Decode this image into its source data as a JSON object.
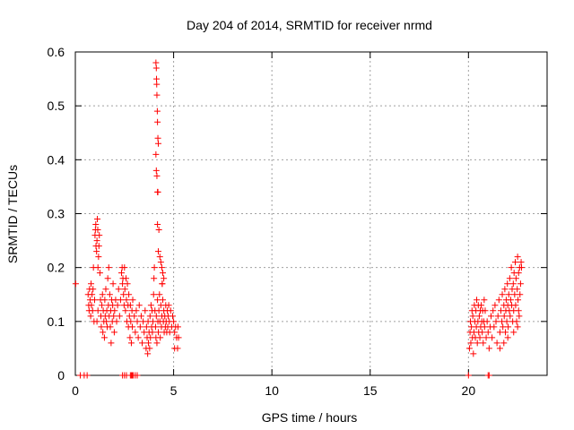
{
  "chart_data": {
    "type": "scatter",
    "title": "Day 204 of 2014, SRMTID for receiver nrmd",
    "xlabel": "GPS time / hours",
    "ylabel": "SRMTID / TECUs",
    "xlim": [
      0,
      24
    ],
    "ylim": [
      0,
      0.6
    ],
    "xticks": [
      0,
      5,
      10,
      15,
      20
    ],
    "xtick_labels": [
      "0",
      "5",
      "10",
      "15",
      "20"
    ],
    "yticks": [
      0,
      0.1,
      0.2,
      0.3,
      0.4,
      0.5,
      0.6
    ],
    "ytick_labels": [
      "0",
      "0.1",
      "0.2",
      "0.3",
      "0.4",
      "0.5",
      "0.6"
    ],
    "grid": true,
    "marker": "+",
    "color": "#ff0000",
    "series": [
      {
        "name": "SRMTID",
        "points": [
          [
            0.02,
            0.17
          ],
          [
            0.25,
            0.0
          ],
          [
            0.45,
            0.0
          ],
          [
            0.6,
            0.0
          ],
          [
            0.65,
            0.15
          ],
          [
            0.68,
            0.13
          ],
          [
            0.7,
            0.12
          ],
          [
            0.72,
            0.16
          ],
          [
            0.75,
            0.14
          ],
          [
            0.78,
            0.11
          ],
          [
            0.8,
            0.17
          ],
          [
            0.82,
            0.13
          ],
          [
            0.85,
            0.15
          ],
          [
            0.88,
            0.12
          ],
          [
            0.9,
            0.16
          ],
          [
            0.92,
            0.2
          ],
          [
            0.95,
            0.1
          ],
          [
            0.98,
            0.14
          ],
          [
            1.0,
            0.26
          ],
          [
            1.02,
            0.27
          ],
          [
            1.04,
            0.28
          ],
          [
            1.05,
            0.24
          ],
          [
            1.08,
            0.23
          ],
          [
            1.1,
            0.25
          ],
          [
            1.12,
            0.29
          ],
          [
            1.14,
            0.27
          ],
          [
            1.15,
            0.2
          ],
          [
            1.18,
            0.22
          ],
          [
            1.2,
            0.24
          ],
          [
            1.22,
            0.26
          ],
          [
            1.25,
            0.19
          ],
          [
            1.1,
            0.1
          ],
          [
            1.15,
            0.12
          ],
          [
            1.28,
            0.14
          ],
          [
            1.3,
            0.11
          ],
          [
            1.32,
            0.09
          ],
          [
            1.35,
            0.13
          ],
          [
            1.38,
            0.15
          ],
          [
            1.4,
            0.08
          ],
          [
            1.42,
            0.12
          ],
          [
            1.45,
            0.1
          ],
          [
            1.48,
            0.07
          ],
          [
            1.5,
            0.14
          ],
          [
            1.52,
            0.11
          ],
          [
            1.55,
            0.16
          ],
          [
            1.58,
            0.1
          ],
          [
            1.6,
            0.12
          ],
          [
            1.62,
            0.09
          ],
          [
            1.65,
            0.18
          ],
          [
            1.68,
            0.13
          ],
          [
            1.7,
            0.2
          ],
          [
            1.72,
            0.11
          ],
          [
            1.75,
            0.15
          ],
          [
            1.78,
            0.09
          ],
          [
            1.8,
            0.12
          ],
          [
            1.82,
            0.06
          ],
          [
            1.85,
            0.14
          ],
          [
            1.88,
            0.1
          ],
          [
            1.9,
            0.13
          ],
          [
            1.92,
            0.17
          ],
          [
            1.95,
            0.11
          ],
          [
            1.98,
            0.08
          ],
          [
            2.0,
            0.12
          ],
          [
            2.05,
            0.14
          ],
          [
            2.1,
            0.1
          ],
          [
            2.15,
            0.13
          ],
          [
            2.2,
            0.16
          ],
          [
            2.25,
            0.11
          ],
          [
            2.3,
            0.14
          ],
          [
            2.35,
            0.19
          ],
          [
            2.38,
            0.2
          ],
          [
            2.4,
            0.17
          ],
          [
            2.42,
            0.18
          ],
          [
            2.45,
            0.15
          ],
          [
            2.48,
            0.13
          ],
          [
            2.5,
            0.2
          ],
          [
            2.52,
            0.16
          ],
          [
            2.55,
            0.12
          ],
          [
            2.58,
            0.18
          ],
          [
            2.6,
            0.14
          ],
          [
            2.62,
            0.1
          ],
          [
            2.65,
            0.17
          ],
          [
            2.68,
            0.13
          ],
          [
            2.7,
            0.09
          ],
          [
            2.72,
            0.15
          ],
          [
            2.75,
            0.11
          ],
          [
            2.78,
            0.07
          ],
          [
            2.8,
            0.13
          ],
          [
            2.82,
            0.1
          ],
          [
            2.85,
            0.06
          ],
          [
            2.88,
            0.12
          ],
          [
            2.9,
            0.09
          ],
          [
            2.92,
            0.14
          ],
          [
            2.4,
            0.0
          ],
          [
            2.5,
            0.0
          ],
          [
            2.6,
            0.0
          ],
          [
            2.8,
            0.0
          ],
          [
            2.85,
            0.0
          ],
          [
            2.9,
            0.0
          ],
          [
            2.95,
            0.0
          ],
          [
            3.05,
            0.0
          ],
          [
            3.15,
            0.0
          ],
          [
            3.0,
            0.11
          ],
          [
            3.05,
            0.08
          ],
          [
            3.1,
            0.12
          ],
          [
            3.15,
            0.1
          ],
          [
            3.2,
            0.07
          ],
          [
            3.25,
            0.13
          ],
          [
            3.3,
            0.09
          ],
          [
            3.35,
            0.11
          ],
          [
            3.4,
            0.06
          ],
          [
            3.45,
            0.1
          ],
          [
            3.5,
            0.08
          ],
          [
            3.55,
            0.12
          ],
          [
            3.6,
            0.05
          ],
          [
            3.62,
            0.09
          ],
          [
            3.65,
            0.07
          ],
          [
            3.68,
            0.04
          ],
          [
            3.7,
            0.1
          ],
          [
            3.72,
            0.06
          ],
          [
            3.75,
            0.08
          ],
          [
            3.78,
            0.05
          ],
          [
            3.8,
            0.11
          ],
          [
            3.82,
            0.07
          ],
          [
            3.85,
            0.13
          ],
          [
            3.88,
            0.09
          ],
          [
            3.9,
            0.12
          ],
          [
            3.92,
            0.08
          ],
          [
            3.95,
            0.1
          ],
          [
            3.98,
            0.15
          ],
          [
            4.0,
            0.18
          ],
          [
            4.02,
            0.2
          ],
          [
            4.05,
            0.12
          ],
          [
            4.08,
            0.09
          ],
          [
            4.1,
            0.07
          ],
          [
            4.12,
            0.11
          ],
          [
            4.15,
            0.06
          ],
          [
            4.18,
            0.14
          ],
          [
            4.2,
            0.1
          ],
          [
            4.22,
            0.08
          ],
          [
            4.25,
            0.12
          ],
          [
            4.28,
            0.15
          ],
          [
            4.3,
            0.1
          ],
          [
            4.32,
            0.07
          ],
          [
            4.35,
            0.13
          ],
          [
            4.38,
            0.09
          ],
          [
            4.4,
            0.11
          ],
          [
            4.42,
            0.17
          ],
          [
            4.45,
            0.14
          ],
          [
            4.48,
            0.1
          ],
          [
            4.5,
            0.12
          ],
          [
            4.52,
            0.08
          ],
          [
            4.55,
            0.11
          ],
          [
            4.58,
            0.09
          ],
          [
            4.6,
            0.13
          ],
          [
            4.62,
            0.1
          ],
          [
            4.65,
            0.08
          ],
          [
            4.68,
            0.12
          ],
          [
            4.7,
            0.09
          ],
          [
            4.72,
            0.11
          ],
          [
            4.75,
            0.13
          ],
          [
            4.78,
            0.1
          ],
          [
            4.8,
            0.08
          ],
          [
            4.85,
            0.12
          ],
          [
            4.9,
            0.09
          ],
          [
            4.95,
            0.11
          ],
          [
            5.0,
            0.1
          ],
          [
            5.05,
            0.08
          ],
          [
            5.1,
            0.09
          ],
          [
            5.15,
            0.07
          ],
          [
            5.2,
            0.05
          ],
          [
            5.22,
            0.09
          ],
          [
            5.25,
            0.07
          ],
          [
            5.05,
            0.05
          ],
          [
            4.1,
            0.58
          ],
          [
            4.12,
            0.57
          ],
          [
            4.13,
            0.55
          ],
          [
            4.14,
            0.54
          ],
          [
            4.15,
            0.52
          ],
          [
            4.17,
            0.49
          ],
          [
            4.18,
            0.47
          ],
          [
            4.2,
            0.44
          ],
          [
            4.22,
            0.43
          ],
          [
            4.1,
            0.41
          ],
          [
            4.12,
            0.38
          ],
          [
            4.15,
            0.37
          ],
          [
            4.18,
            0.34
          ],
          [
            4.2,
            0.34
          ],
          [
            4.18,
            0.28
          ],
          [
            4.25,
            0.27
          ],
          [
            4.22,
            0.23
          ],
          [
            4.3,
            0.22
          ],
          [
            4.35,
            0.21
          ],
          [
            4.4,
            0.2
          ],
          [
            4.45,
            0.19
          ],
          [
            4.5,
            0.18
          ],
          [
            4.42,
            0.17
          ],
          [
            20.0,
            0.0
          ],
          [
            21.0,
            0.0
          ],
          [
            21.05,
            0.0
          ],
          [
            20.05,
            0.05
          ],
          [
            20.08,
            0.08
          ],
          [
            20.1,
            0.1
          ],
          [
            20.12,
            0.06
          ],
          [
            20.15,
            0.09
          ],
          [
            20.18,
            0.12
          ],
          [
            20.2,
            0.07
          ],
          [
            20.22,
            0.11
          ],
          [
            20.25,
            0.04
          ],
          [
            20.28,
            0.08
          ],
          [
            20.3,
            0.13
          ],
          [
            20.32,
            0.1
          ],
          [
            20.35,
            0.07
          ],
          [
            20.38,
            0.12
          ],
          [
            20.4,
            0.09
          ],
          [
            20.42,
            0.14
          ],
          [
            20.45,
            0.06
          ],
          [
            20.48,
            0.1
          ],
          [
            20.5,
            0.13
          ],
          [
            20.52,
            0.08
          ],
          [
            20.55,
            0.11
          ],
          [
            20.58,
            0.07
          ],
          [
            20.6,
            0.12
          ],
          [
            20.62,
            0.09
          ],
          [
            20.65,
            0.13
          ],
          [
            20.68,
            0.1
          ],
          [
            20.7,
            0.08
          ],
          [
            20.72,
            0.12
          ],
          [
            20.75,
            0.06
          ],
          [
            20.78,
            0.1
          ],
          [
            20.8,
            0.14
          ],
          [
            20.82,
            0.09
          ],
          [
            20.85,
            0.12
          ],
          [
            20.9,
            0.07
          ],
          [
            20.95,
            0.1
          ],
          [
            21.0,
            0.08
          ],
          [
            21.05,
            0.05
          ],
          [
            21.1,
            0.09
          ],
          [
            21.15,
            0.11
          ],
          [
            21.2,
            0.07
          ],
          [
            21.25,
            0.12
          ],
          [
            21.3,
            0.09
          ],
          [
            21.35,
            0.13
          ],
          [
            21.4,
            0.1
          ],
          [
            21.45,
            0.06
          ],
          [
            21.5,
            0.11
          ],
          [
            21.55,
            0.14
          ],
          [
            21.6,
            0.08
          ],
          [
            21.65,
            0.12
          ],
          [
            21.7,
            0.1
          ],
          [
            21.72,
            0.15
          ],
          [
            21.75,
            0.09
          ],
          [
            21.8,
            0.13
          ],
          [
            21.82,
            0.11
          ],
          [
            21.85,
            0.16
          ],
          [
            21.88,
            0.08
          ],
          [
            21.9,
            0.12
          ],
          [
            21.92,
            0.14
          ],
          [
            21.95,
            0.1
          ],
          [
            21.98,
            0.17
          ],
          [
            22.0,
            0.13
          ],
          [
            22.02,
            0.09
          ],
          [
            22.05,
            0.15
          ],
          [
            22.08,
            0.12
          ],
          [
            22.1,
            0.18
          ],
          [
            22.12,
            0.11
          ],
          [
            22.15,
            0.14
          ],
          [
            22.18,
            0.2
          ],
          [
            22.2,
            0.13
          ],
          [
            22.22,
            0.16
          ],
          [
            22.25,
            0.1
          ],
          [
            22.28,
            0.17
          ],
          [
            22.3,
            0.12
          ],
          [
            22.32,
            0.19
          ],
          [
            22.35,
            0.15
          ],
          [
            22.38,
            0.21
          ],
          [
            22.4,
            0.13
          ],
          [
            22.42,
            0.18
          ],
          [
            22.45,
            0.1
          ],
          [
            22.48,
            0.16
          ],
          [
            22.5,
            0.22
          ],
          [
            22.52,
            0.14
          ],
          [
            22.55,
            0.19
          ],
          [
            22.58,
            0.11
          ],
          [
            22.6,
            0.2
          ],
          [
            22.62,
            0.15
          ],
          [
            22.65,
            0.17
          ],
          [
            22.68,
            0.21
          ],
          [
            22.7,
            0.2
          ],
          [
            22.5,
            0.09
          ],
          [
            22.55,
            0.12
          ],
          [
            22.3,
            0.08
          ],
          [
            22.0,
            0.07
          ],
          [
            21.8,
            0.06
          ],
          [
            21.6,
            0.05
          ]
        ]
      }
    ]
  }
}
